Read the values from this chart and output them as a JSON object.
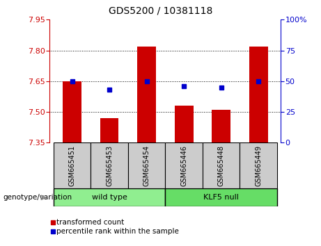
{
  "title": "GDS5200 / 10381118",
  "samples": [
    "GSM665451",
    "GSM665453",
    "GSM665454",
    "GSM665446",
    "GSM665448",
    "GSM665449"
  ],
  "red_values": [
    7.65,
    7.47,
    7.82,
    7.53,
    7.51,
    7.82
  ],
  "blue_values": [
    50,
    43,
    50,
    46,
    45,
    50
  ],
  "ylim": [
    7.35,
    7.95
  ],
  "yticks": [
    7.35,
    7.5,
    7.65,
    7.8,
    7.95
  ],
  "y2ticks": [
    0,
    25,
    50,
    75,
    100
  ],
  "y2tick_labels": [
    "0",
    "25",
    "50",
    "75",
    "100%"
  ],
  "bar_color": "#cc0000",
  "dot_color": "#0000cc",
  "bar_width": 0.5,
  "grid_yticks": [
    7.5,
    7.65,
    7.8
  ],
  "wild_type_color": "#90EE90",
  "klf5_color": "#66DD66",
  "label_bg_color": "#cccccc",
  "legend_red_label": "transformed count",
  "legend_blue_label": "percentile rank within the sample",
  "genotype_label": "genotype/variation"
}
